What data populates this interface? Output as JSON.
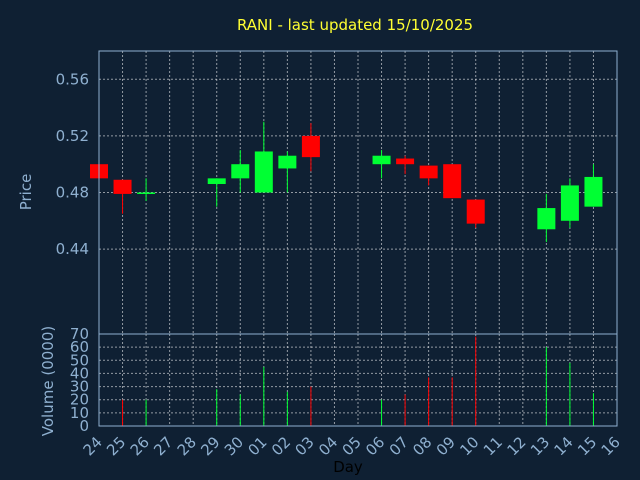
{
  "chart_data": {
    "type": "candlestick",
    "title": "RANI - last updated 15/10/2025",
    "xlabel": "Day",
    "price_panel": {
      "ylabel": "Price",
      "ylim": [
        0.38,
        0.58
      ],
      "yticks": [
        "0.44",
        "0.48",
        "0.52",
        "0.56"
      ]
    },
    "volume_panel": {
      "ylabel": "Volume (0000)",
      "ylim": [
        0,
        70
      ],
      "yticks": [
        "0",
        "10",
        "20",
        "30",
        "40",
        "50",
        "60",
        "70"
      ]
    },
    "x_tick_labels": [
      "24",
      "25",
      "26",
      "27",
      "28",
      "29",
      "30",
      "01",
      "02",
      "03",
      "04",
      "05",
      "06",
      "07",
      "08",
      "09",
      "10",
      "11",
      "12",
      "13",
      "14",
      "15",
      "16"
    ],
    "colors": {
      "up": "#00ff33",
      "down": "#ff0000",
      "background": "#0f2033",
      "title": "#ffff33",
      "axis": "#8fb0d0"
    },
    "candles": [
      {
        "day": "24",
        "open": 0.5,
        "high": 0.5,
        "low": 0.49,
        "close": 0.49,
        "volume": 0
      },
      {
        "day": "25",
        "open": 0.489,
        "high": 0.489,
        "low": 0.465,
        "close": 0.479,
        "volume": 20
      },
      {
        "day": "26",
        "open": 0.48,
        "high": 0.49,
        "low": 0.474,
        "close": 0.48,
        "volume": 20
      },
      {
        "day": "29",
        "open": 0.486,
        "high": 0.49,
        "low": 0.47,
        "close": 0.49,
        "volume": 28
      },
      {
        "day": "30",
        "open": 0.49,
        "high": 0.51,
        "low": 0.48,
        "close": 0.5,
        "volume": 24
      },
      {
        "day": "01",
        "open": 0.48,
        "high": 0.53,
        "low": 0.48,
        "close": 0.509,
        "volume": 45
      },
      {
        "day": "02",
        "open": 0.497,
        "high": 0.509,
        "low": 0.48,
        "close": 0.506,
        "volume": 26
      },
      {
        "day": "03",
        "open": 0.52,
        "high": 0.529,
        "low": 0.495,
        "close": 0.505,
        "volume": 30
      },
      {
        "day": "06",
        "open": 0.5,
        "high": 0.51,
        "low": 0.49,
        "close": 0.506,
        "volume": 20
      },
      {
        "day": "07",
        "open": 0.504,
        "high": 0.506,
        "low": 0.493,
        "close": 0.5,
        "volume": 24
      },
      {
        "day": "08",
        "open": 0.499,
        "high": 0.499,
        "low": 0.485,
        "close": 0.49,
        "volume": 37
      },
      {
        "day": "09",
        "open": 0.5,
        "high": 0.5,
        "low": 0.476,
        "close": 0.476,
        "volume": 37
      },
      {
        "day": "10",
        "open": 0.475,
        "high": 0.475,
        "low": 0.455,
        "close": 0.458,
        "volume": 68
      },
      {
        "day": "13",
        "open": 0.454,
        "high": 0.479,
        "low": 0.445,
        "close": 0.469,
        "volume": 60
      },
      {
        "day": "14",
        "open": 0.46,
        "high": 0.49,
        "low": 0.455,
        "close": 0.485,
        "volume": 48
      },
      {
        "day": "15",
        "open": 0.47,
        "high": 0.5,
        "low": 0.47,
        "close": 0.491,
        "volume": 25
      }
    ]
  }
}
